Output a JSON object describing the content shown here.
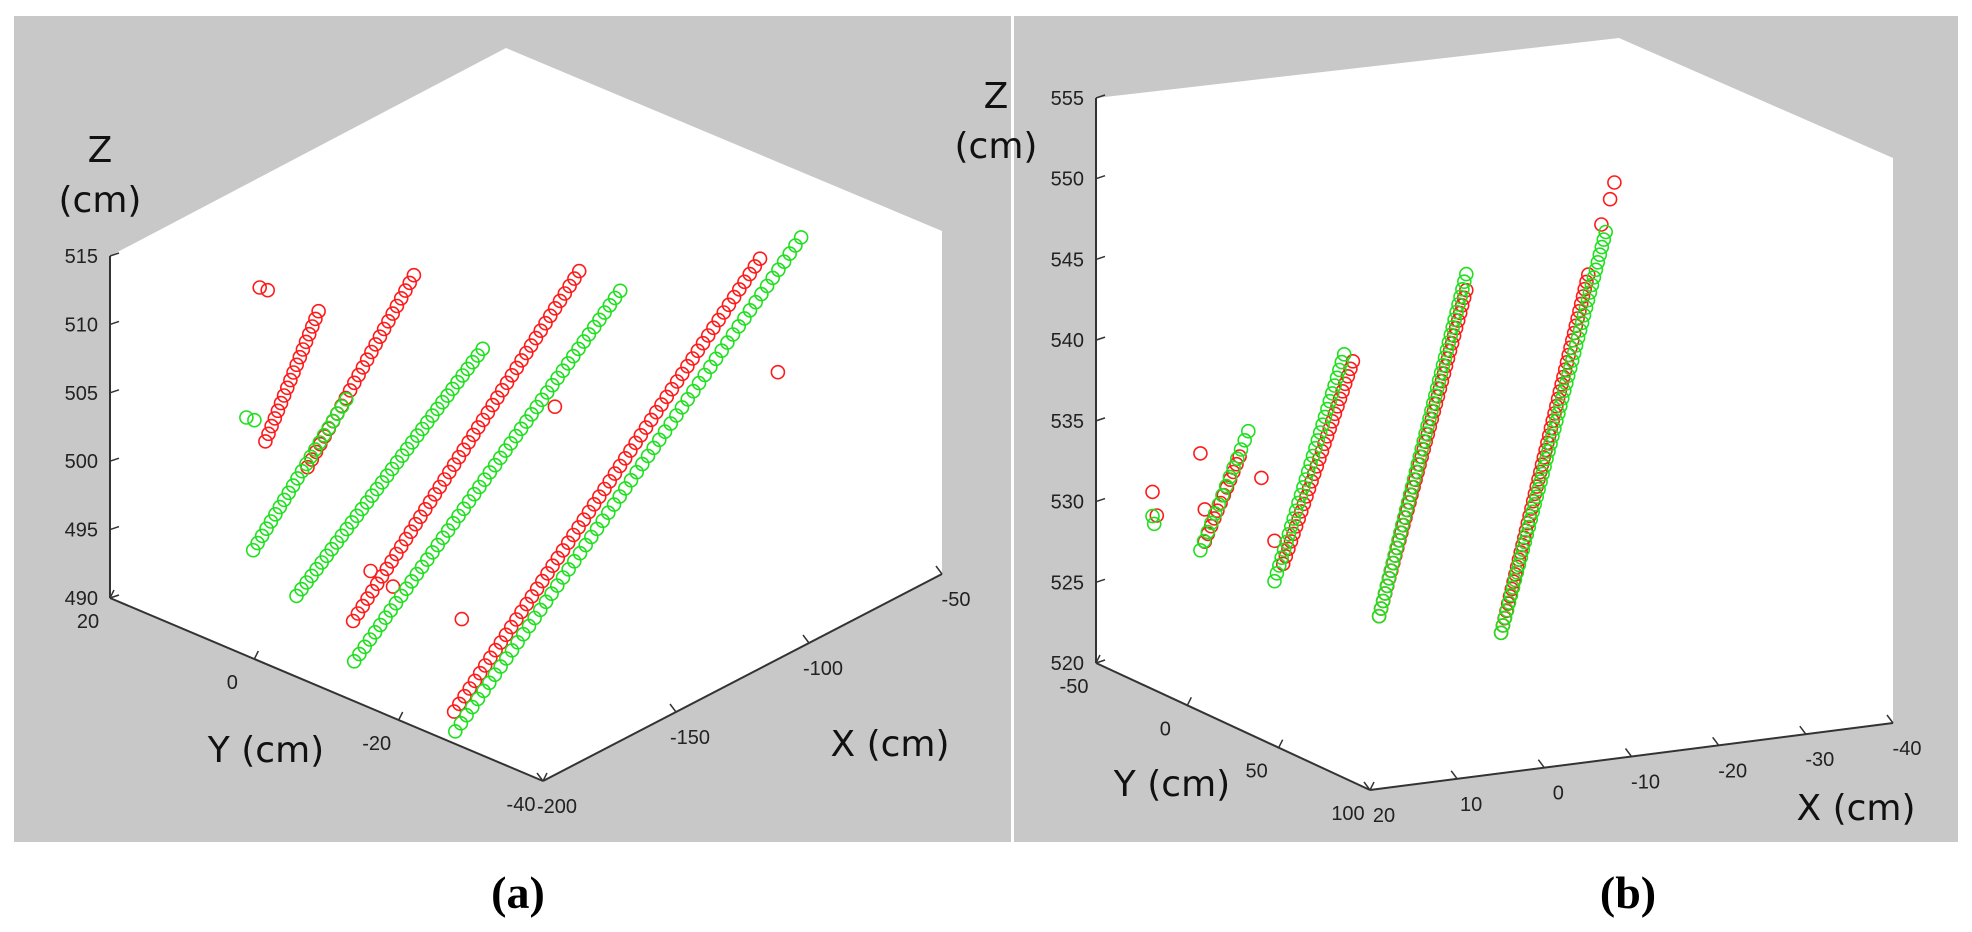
{
  "figure_caption_a": "(a)",
  "figure_caption_b": "(b)",
  "colors": {
    "panel_bg": "#c8c8c8",
    "axes_bg": "#ffffff",
    "series_a": "#ff1a1a",
    "series_b": "#1fe01f",
    "axis_line": "#333333"
  },
  "chart_data": [
    {
      "type": "scatter",
      "panel": "a",
      "xlabel": "X (cm)",
      "ylabel": "Y (cm)",
      "zlabel_line1": "Z",
      "zlabel_line2": "(cm)",
      "xlim": [
        -200,
        -50
      ],
      "ylim": [
        -40,
        20
      ],
      "zlim": [
        490,
        515
      ],
      "x_ticks": [
        -200,
        -150,
        -100,
        -50
      ],
      "y_ticks": [
        20,
        0,
        -20,
        -40
      ],
      "z_ticks": [
        490,
        495,
        500,
        505,
        510,
        515
      ],
      "x_tick_labels": [
        "-200",
        "-150",
        "-100",
        "-50"
      ],
      "y_tick_labels": [
        "20",
        "0",
        "-20",
        "-40"
      ],
      "z_tick_labels": [
        "490",
        "495",
        "500",
        "505",
        "510",
        "515"
      ],
      "marker": "circle-open",
      "series": [
        {
          "name": "red",
          "color": "#ff1a1a",
          "segments": [
            {
              "x0": -185,
              "x1": -165,
              "y0": 4,
              "y1": 4,
              "z0": 503.5,
              "z1": 511,
              "n": 18
            },
            {
              "x0": -180,
              "x1": -140,
              "y0": 0,
              "y1": 0,
              "z0": 502,
              "z1": 512,
              "n": 26
            },
            {
              "x0": -190,
              "x1": -105,
              "y0": -10,
              "y1": -10,
              "z0": 494,
              "z1": 511,
              "n": 48
            },
            {
              "x0": -190,
              "x1": -75,
              "y0": -24,
              "y1": -24,
              "z0": 490.5,
              "z1": 512,
              "n": 60
            }
          ],
          "points": [
            {
              "x": -160,
              "y": 14,
              "z": 510
            },
            {
              "x": -157,
              "y": 14,
              "z": 509.5
            },
            {
              "x": -178,
              "y": -8,
              "z": 496
            },
            {
              "x": -175,
              "y": -10,
              "z": 495
            },
            {
              "x": -125,
              "y": -14,
              "z": 504
            },
            {
              "x": -160,
              "y": -14,
              "z": 492
            },
            {
              "x": -90,
              "y": -32,
              "z": 507
            }
          ]
        },
        {
          "name": "green",
          "color": "#1fe01f",
          "segments": [
            {
              "x0": -195,
              "x1": -160,
              "y0": 2,
              "y1": 2,
              "z0": 497,
              "z1": 504.5,
              "n": 22
            },
            {
              "x0": -195,
              "x1": -125,
              "y0": -4,
              "y1": -4,
              "z0": 495,
              "z1": 506,
              "n": 38
            },
            {
              "x0": -195,
              "x1": -95,
              "y0": -12,
              "y1": -12,
              "z0": 492,
              "z1": 509,
              "n": 52
            },
            {
              "x0": -195,
              "x1": -65,
              "y0": -26,
              "y1": -26,
              "z0": 490,
              "z1": 513,
              "n": 62
            }
          ],
          "points": [
            {
              "x": -165,
              "y": 14,
              "z": 501
            },
            {
              "x": -162,
              "y": 14,
              "z": 500.5
            }
          ]
        }
      ]
    },
    {
      "type": "scatter",
      "panel": "b",
      "xlabel": "X (cm)",
      "ylabel": "Y (cm)",
      "zlabel_line1": "Z",
      "zlabel_line2": "(cm)",
      "xlim": [
        -40,
        20
      ],
      "ylim": [
        -50,
        100
      ],
      "zlim": [
        520,
        555
      ],
      "x_ticks": [
        20,
        10,
        0,
        -10,
        -20,
        -30,
        -40
      ],
      "y_ticks": [
        -50,
        0,
        50,
        100
      ],
      "z_ticks": [
        520,
        525,
        530,
        535,
        540,
        545,
        550,
        555
      ],
      "x_tick_labels": [
        "20",
        "10",
        "0",
        "-10",
        "-20",
        "-30",
        "-40"
      ],
      "y_tick_labels": [
        "-50",
        "0",
        "50",
        "100"
      ],
      "z_tick_labels": [
        "520",
        "525",
        "530",
        "535",
        "540",
        "545",
        "550",
        "555"
      ],
      "marker": "circle-open",
      "series": [
        {
          "name": "red",
          "color": "#ff1a1a",
          "segments": [
            {
              "x0": 18,
              "x1": 14,
              "y0": 0,
              "y1": 0,
              "z0": 530,
              "z1": 535,
              "n": 12
            },
            {
              "x0": 9,
              "x1": 1,
              "y0": 0,
              "y1": 0,
              "z0": 528,
              "z1": 540,
              "n": 28
            },
            {
              "x0": -2,
              "x1": -12,
              "y0": 0,
              "y1": 0,
              "z0": 524,
              "z1": 543.5,
              "n": 44
            },
            {
              "x0": -16,
              "x1": -26,
              "y0": 0,
              "y1": 0,
              "z0": 522,
              "z1": 543.5,
              "n": 50
            }
          ],
          "points": [
            {
              "x": 24,
              "y": 0,
              "z": 533.5
            },
            {
              "x": 23.5,
              "y": 0,
              "z": 532
            },
            {
              "x": 18.5,
              "y": 0,
              "z": 535.5
            },
            {
              "x": 18,
              "y": 0,
              "z": 532
            },
            {
              "x": 11.5,
              "y": 0,
              "z": 533.5
            },
            {
              "x": 10,
              "y": 0,
              "z": 529.5
            },
            {
              "x": -27.5,
              "y": 0,
              "z": 546.5
            },
            {
              "x": -28.5,
              "y": 0,
              "z": 548
            },
            {
              "x": -29,
              "y": 0,
              "z": 549
            }
          ]
        },
        {
          "name": "green",
          "color": "#1fe01f",
          "segments": [
            {
              "x0": 18.5,
              "x1": 13,
              "y0": 0,
              "y1": 0,
              "z0": 529.5,
              "z1": 536.5,
              "n": 14
            },
            {
              "x0": 10,
              "x1": 2,
              "y0": 0,
              "y1": 0,
              "z0": 527,
              "z1": 540.5,
              "n": 30
            },
            {
              "x0": -2,
              "x1": -12,
              "y0": 0,
              "y1": 0,
              "z0": 524,
              "z1": 544.5,
              "n": 46
            },
            {
              "x0": -16,
              "x1": -28,
              "y0": 0,
              "y1": 0,
              "z0": 522,
              "z1": 546,
              "n": 54
            }
          ],
          "points": [
            {
              "x": 24,
              "y": 0,
              "z": 532
            },
            {
              "x": 23.8,
              "y": 0,
              "z": 531.5
            }
          ]
        }
      ]
    }
  ]
}
